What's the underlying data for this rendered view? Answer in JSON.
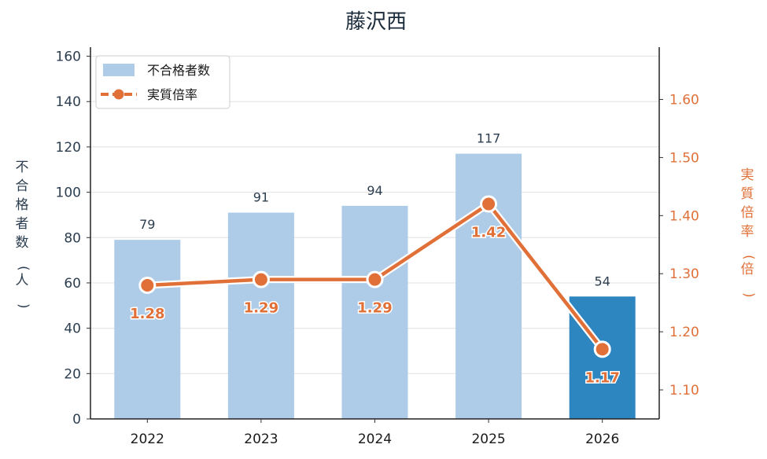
{
  "chart_data": {
    "type": "bar",
    "title": "藤沢西",
    "categories": [
      "2022",
      "2023",
      "2024",
      "2025",
      "2026"
    ],
    "series": [
      {
        "name": "不合格者数",
        "type": "bar",
        "axis": "left",
        "values": [
          79,
          91,
          94,
          117,
          54
        ],
        "color": "#aecbe8",
        "highlight_color": "#2e86c1",
        "highlight_index": 4
      },
      {
        "name": "実質倍率",
        "type": "line",
        "axis": "right",
        "values": [
          1.28,
          1.29,
          1.29,
          1.42,
          1.17
        ],
        "labels": [
          "1.28",
          "1.29",
          "1.29",
          "1.42",
          "1.17"
        ],
        "color": "#e07038"
      }
    ],
    "ylabel": "不合格者数（人）",
    "y2label": "実質倍率（倍）",
    "ylim": [
      0,
      164
    ],
    "yticks": [
      0,
      20,
      40,
      60,
      80,
      100,
      120,
      140,
      160
    ],
    "y2lim": [
      1.05,
      1.69
    ],
    "y2ticks": [
      1.1,
      1.2,
      1.3,
      1.4,
      1.5,
      1.6
    ],
    "y2tick_labels": [
      "1.10",
      "1.20",
      "1.30",
      "1.40",
      "1.50",
      "1.60"
    ],
    "grid": true,
    "legend_position": "top-left",
    "colors": {
      "left_axis_text": "#2c3e50",
      "right_axis_text": "#e07038",
      "grid": "#e6e6e6"
    }
  }
}
